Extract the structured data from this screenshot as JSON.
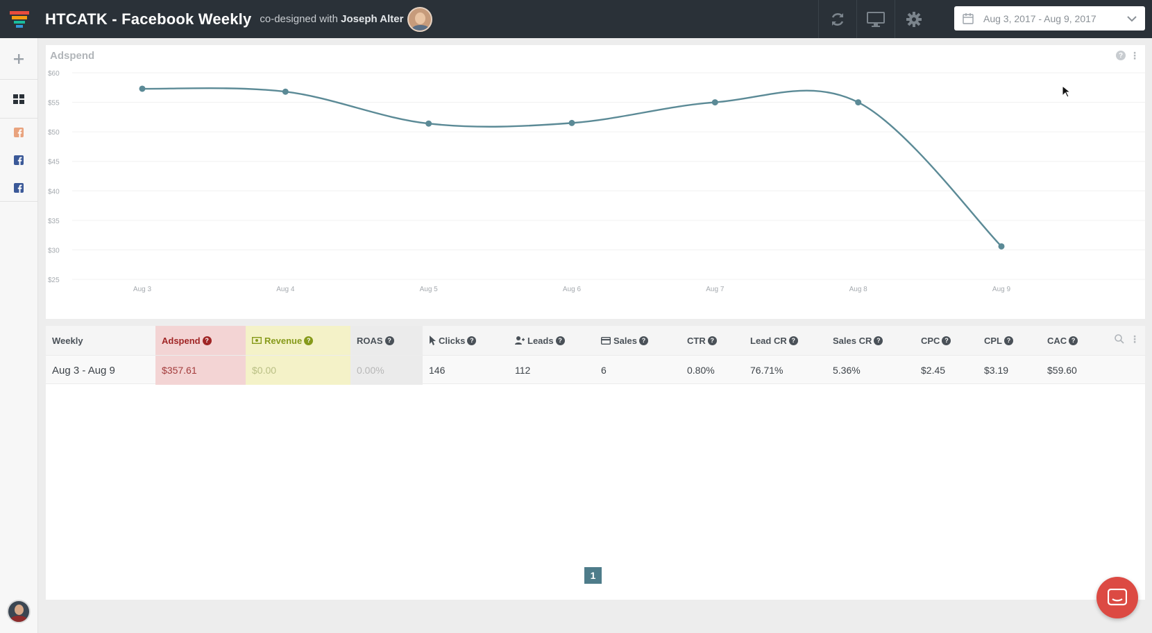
{
  "header": {
    "title": "HTCATK - Facebook Weekly",
    "codesigned_prefix": "co-designed with",
    "codesigner": "Joseph Alter",
    "date_range": "Aug 3, 2017 - Aug 9, 2017",
    "icons": [
      "refresh-icon",
      "monitor-icon",
      "gear-icon",
      "calendar-icon",
      "chevron-down-icon"
    ]
  },
  "sidebar": {
    "items": [
      {
        "icon": "plus-icon"
      },
      {
        "icon": "dashboard-grid-icon"
      },
      {
        "icon": "facebook-icon",
        "color": "#e9a37e"
      },
      {
        "icon": "facebook-icon",
        "color": "#3b5998"
      },
      {
        "icon": "facebook-icon",
        "color": "#3b5998"
      }
    ]
  },
  "chart_panel": {
    "title": "Adspend",
    "help_icon": "?",
    "menu_icon": "⋮"
  },
  "chart_data": {
    "type": "line",
    "title": "Adspend",
    "categories": [
      "Aug 3",
      "Aug 4",
      "Aug 5",
      "Aug 6",
      "Aug 7",
      "Aug 8",
      "Aug 9"
    ],
    "series": [
      {
        "name": "",
        "values": [
          57.3,
          56.8,
          51.4,
          51.5,
          55.0,
          55.0,
          30.6
        ]
      }
    ],
    "ylim": [
      25,
      60
    ],
    "yticks": [
      60,
      55,
      50,
      45,
      40,
      35,
      30,
      25
    ],
    "ytick_labels": [
      "$60",
      "$55",
      "$50",
      "$45",
      "$40",
      "$35",
      "$30",
      "$25"
    ],
    "grid": true,
    "line_color": "#5b8a96"
  },
  "table": {
    "headers": {
      "weekly": "Weekly",
      "adspend": "Adspend",
      "revenue": "Revenue",
      "roas": "ROAS",
      "clicks": "Clicks",
      "leads": "Leads",
      "sales": "Sales",
      "ctr": "CTR",
      "lead_cr": "Lead CR",
      "sales_cr": "Sales CR",
      "cpc": "CPC",
      "cpl": "CPL",
      "cac": "CAC"
    },
    "rows": [
      {
        "weekly": "Aug 3 - Aug 9",
        "adspend": "$357.61",
        "revenue": "$0.00",
        "roas": "0.00%",
        "clicks": "146",
        "leads": "112",
        "sales": "6",
        "ctr": "0.80%",
        "lead_cr": "76.71%",
        "sales_cr": "5.36%",
        "cpc": "$2.45",
        "cpl": "$3.19",
        "cac": "$59.60"
      }
    ],
    "help_glyph": "?",
    "pagination": {
      "current_page": "1"
    }
  },
  "colors": {
    "topbar": "#2a3138",
    "adspend_bg": "#f3d4d4",
    "revenue_bg": "#f4f2c8",
    "roas_bg": "#ebebeb",
    "accent": "#4e7c8a",
    "chat_button": "#dc4a43"
  }
}
